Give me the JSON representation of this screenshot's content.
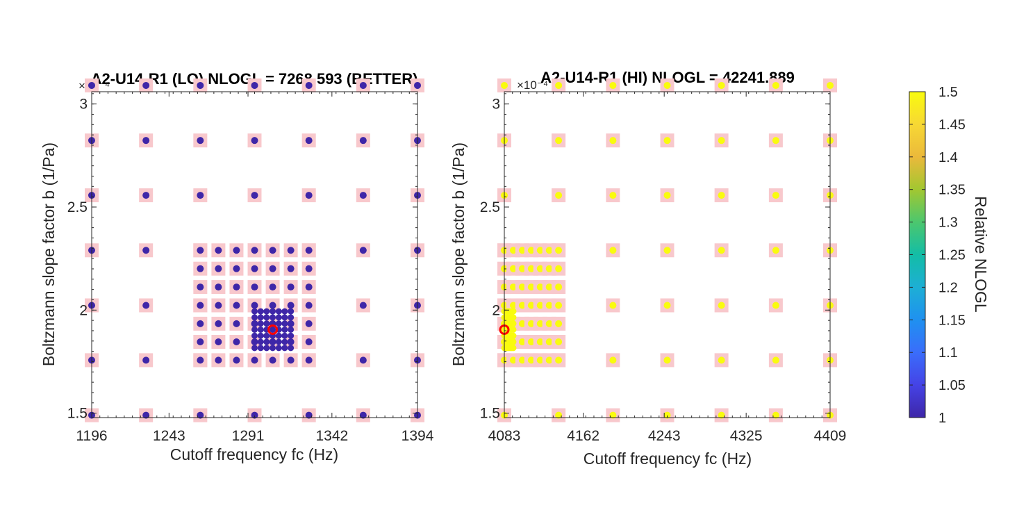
{
  "chart_data": [
    {
      "type": "scatter",
      "title": "A2-U14-R1 (LO) NLOGL = 7268.593 (BETTER)",
      "xlabel": "Cutoff frequency fc (Hz)",
      "ylabel": "Boltzmann slope factor b (1/Pa)",
      "y_exponent": "×10⁻⁴",
      "xlim": [
        1196,
        1394
      ],
      "ylim": [
        1.4785,
        3.0595
      ],
      "xticks": [
        "1196",
        "1243",
        "1291",
        "1342",
        "1394"
      ],
      "xtick_values": [
        1196,
        1243,
        1291,
        1342,
        1394
      ],
      "yticks": [
        "1.5",
        "2",
        "2.5",
        "3"
      ],
      "ytick_values": [
        1.5,
        2,
        2.5,
        3
      ],
      "coarse_grid": {
        "x": [
          1196,
          1229,
          1262,
          1295,
          1328,
          1361,
          1394
        ],
        "y": [
          1.49,
          1.757,
          2.023,
          2.29,
          2.557,
          2.823,
          3.09
        ],
        "value": 1.0
      },
      "medium_grid": {
        "x": [
          1262,
          1273,
          1284,
          1295,
          1306,
          1317,
          1328
        ],
        "y": [
          1.757,
          1.846,
          1.934,
          2.023,
          2.112,
          2.201,
          2.29
        ],
        "value": 1.0
      },
      "fine_grid": {
        "x": [
          1295,
          1298.7,
          1302.3,
          1306,
          1309.7,
          1313.3,
          1317
        ],
        "y": [
          1.8162,
          1.8458,
          1.8755,
          1.9051,
          1.9347,
          1.9644,
          1.994
        ],
        "value": 1.0
      },
      "best_point": {
        "x": 1306,
        "y": 1.9051
      }
    },
    {
      "type": "scatter",
      "title": "A2-U14-R1 (HI) NLOGL = 42241.889",
      "xlabel": "Cutoff frequency fc (Hz)",
      "ylabel": "Boltzmann slope factor b (1/Pa)",
      "y_exponent": "×10⁻⁴",
      "xlim": [
        4083,
        4409
      ],
      "ylim": [
        1.4785,
        3.0595
      ],
      "xticks": [
        "4083",
        "4162",
        "4243",
        "4325",
        "4409"
      ],
      "xtick_values": [
        4083,
        4162,
        4243,
        4325,
        4409
      ],
      "yticks": [
        "1.5",
        "2",
        "2.5",
        "3"
      ],
      "ytick_values": [
        1.5,
        2,
        2.5,
        3
      ],
      "coarse_grid": {
        "x": [
          4083,
          4137.3,
          4191.7,
          4246,
          4300.3,
          4354.7,
          4409
        ],
        "y": [
          1.49,
          1.757,
          2.023,
          2.29,
          2.557,
          2.823,
          3.09
        ],
        "value": 1.5
      },
      "medium_grid": {
        "x": [
          4083,
          4092,
          4101,
          4110,
          4119,
          4128,
          4137.3
        ],
        "y": [
          1.757,
          1.846,
          1.934,
          2.023,
          2.112,
          2.201,
          2.29
        ],
        "value": 1.5
      },
      "fine_grid": {
        "x": [
          4083,
          4084.5,
          4086,
          4087.5,
          4089,
          4090.5,
          4092
        ],
        "y": [
          1.8162,
          1.8458,
          1.8755,
          1.9051,
          1.9347,
          1.9644,
          1.994
        ],
        "value": 1.5
      },
      "best_point": {
        "x": 4083,
        "y": 1.9051
      }
    }
  ],
  "colorbar": {
    "label": "Relative NLOGL",
    "min": 1,
    "max": 1.5,
    "ticks": [
      "1",
      "1.05",
      "1.1",
      "1.15",
      "1.2",
      "1.25",
      "1.3",
      "1.35",
      "1.4",
      "1.45",
      "1.5"
    ]
  },
  "colors": {
    "low": "#3e26a8",
    "high": "#f9fb0e",
    "square": "#f8c8cc",
    "best_marker": "#ff0000",
    "axis": "#262626"
  }
}
